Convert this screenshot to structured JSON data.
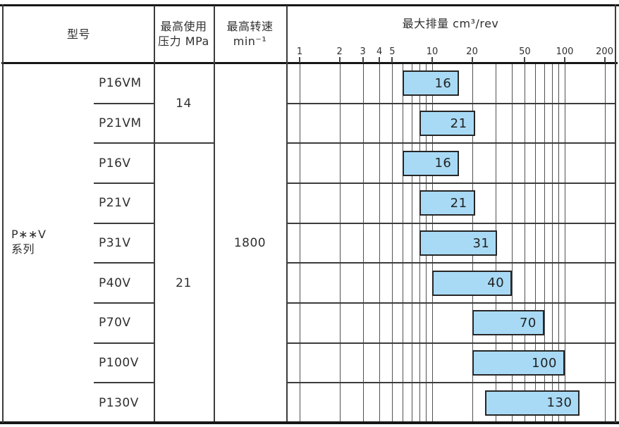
{
  "header": {
    "model": "型号",
    "pressure_line1": "最高使用",
    "pressure_line2": "压力 MPa",
    "speed_line1": "最高转速",
    "speed_line2": "min⁻¹"
  },
  "series_label": {
    "line1": "P∗∗V",
    "line2": "系列"
  },
  "pressure_groups": [
    {
      "value": "14",
      "row_start": 0,
      "row_count": 2
    },
    {
      "value": "21",
      "row_start": 2,
      "row_count": 7
    }
  ],
  "max_speed": "1800",
  "chart_data": {
    "type": "bar",
    "orientation": "horizontal-range",
    "x_scale": "log",
    "title": "最大排量 cm³/rev",
    "x_tick_labels": [
      1,
      2,
      3,
      4,
      5,
      10,
      20,
      50,
      100,
      200
    ],
    "x_gridlines": [
      1,
      2,
      3,
      4,
      5,
      6,
      7,
      8,
      9,
      10,
      20,
      30,
      40,
      50,
      60,
      70,
      80,
      90,
      100,
      200
    ],
    "x_range": [
      1,
      245
    ],
    "categories": [
      "P16VM",
      "P21VM",
      "P16V",
      "P21V",
      "P31V",
      "P40V",
      "P70V",
      "P100V",
      "P130V"
    ],
    "ranges": [
      [
        6,
        16
      ],
      [
        8,
        21
      ],
      [
        6,
        16
      ],
      [
        8,
        21
      ],
      [
        8,
        31
      ],
      [
        10,
        40
      ],
      [
        20,
        70
      ],
      [
        20,
        100
      ],
      [
        25,
        130
      ]
    ],
    "bar_labels": [
      "16",
      "21",
      "16",
      "21",
      "31",
      "40",
      "70",
      "100",
      "130"
    ],
    "legend": "none",
    "grid": "on"
  },
  "colors": {
    "bar_fill": "#A8DAF5",
    "bar_border": "#262626",
    "grid_line": "#515151",
    "table_border": "#161616",
    "text": "#2f2f2f"
  }
}
